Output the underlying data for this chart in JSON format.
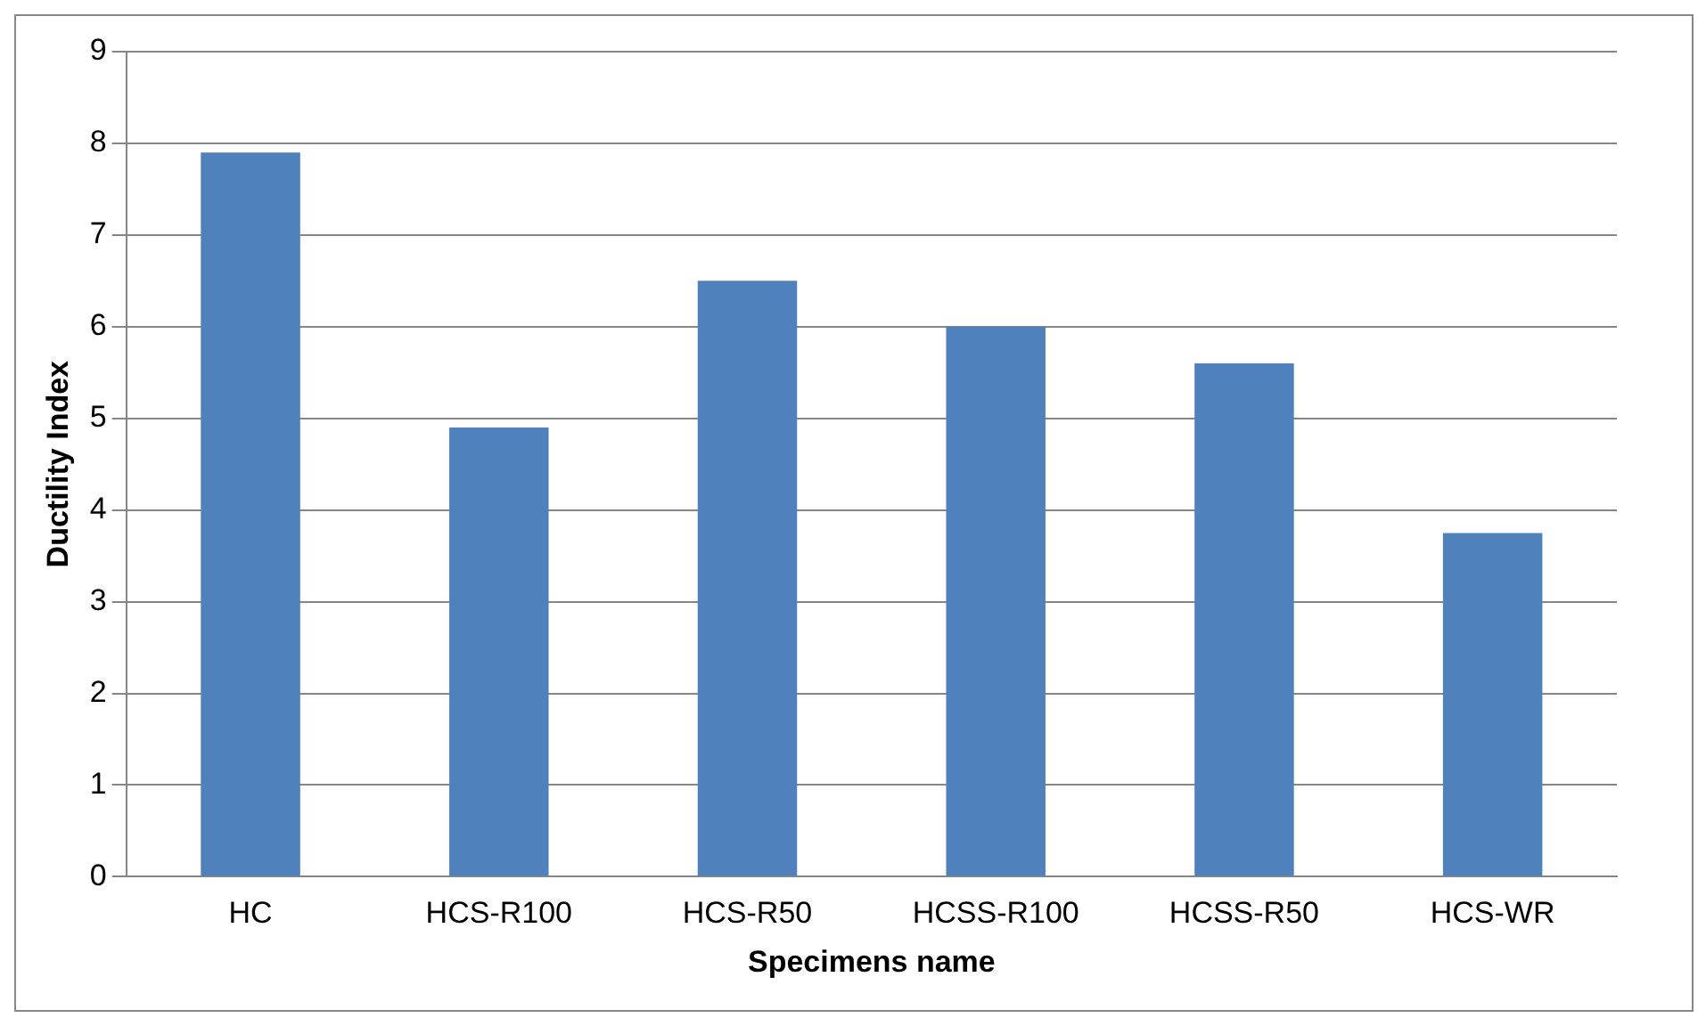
{
  "chart_data": {
    "type": "bar",
    "xlabel": "Specimens name",
    "ylabel": "Ductility Index",
    "categories": [
      "HC",
      "HCS-R100",
      "HCS-R50",
      "HCSS-R100",
      "HCSS-R50",
      "HCS-WR"
    ],
    "values": [
      7.9,
      4.9,
      6.5,
      6.0,
      5.6,
      3.75
    ],
    "color": "#4f81bd",
    "ylim": [
      0,
      9
    ],
    "yticks": [
      0,
      1,
      2,
      3,
      4,
      5,
      6,
      7,
      8,
      9
    ],
    "grid": "y",
    "legend": false
  }
}
